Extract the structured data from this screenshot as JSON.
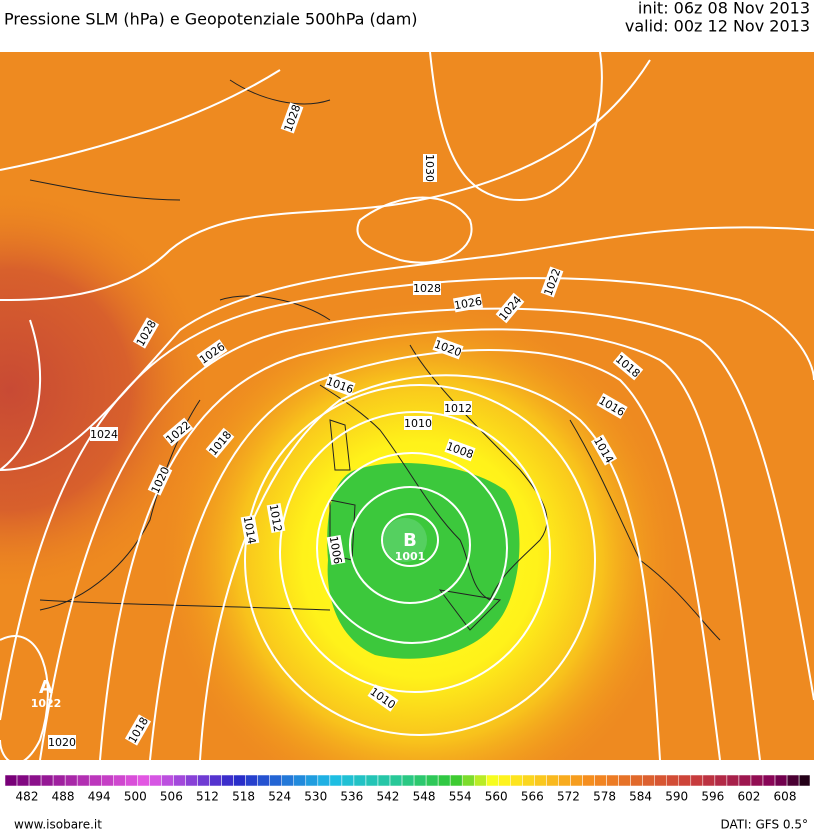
{
  "header": {
    "title": "Pressione SLM (hPa) e Geopotenziale 500hPa (dam)",
    "init": "init: 06z 08 Nov 2013",
    "valid": "valid: 00z 12 Nov 2013"
  },
  "map": {
    "centers": [
      {
        "letter": "B",
        "pressure": 1001
      },
      {
        "letter": "A",
        "pressure": 1022
      }
    ],
    "isobar_labels": [
      1028,
      1030,
      1028,
      1026,
      1024,
      1022,
      1028,
      1026,
      1020,
      1018,
      1016,
      1016,
      1012,
      1010,
      1024,
      1022,
      1018,
      1014,
      1008,
      1020,
      1014,
      1012,
      1006,
      1010,
      1018,
      1020
    ]
  },
  "colorbar": {
    "ticks": [
      482,
      488,
      494,
      500,
      506,
      512,
      518,
      524,
      530,
      536,
      542,
      548,
      554,
      560,
      566,
      572,
      578,
      584,
      590,
      596,
      602,
      608
    ]
  },
  "footer": {
    "source": "www.isobare.it",
    "data": "DATI: GFS 0.5°"
  }
}
